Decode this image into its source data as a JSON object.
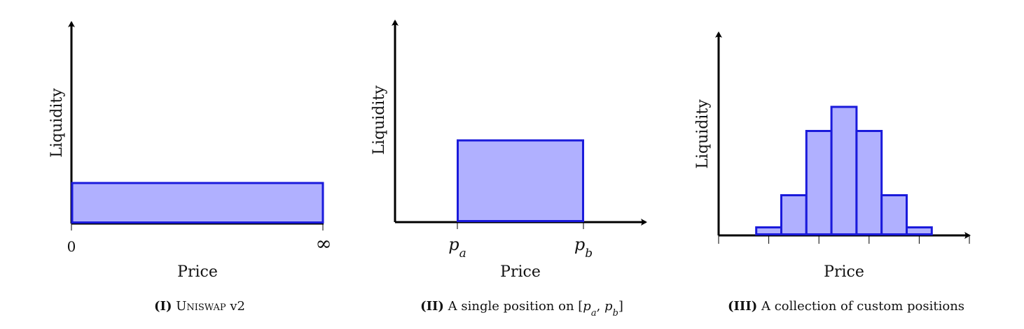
{
  "chart_data": [
    {
      "type": "bar",
      "caption_number": "(I)",
      "caption_text": "Uniswap v2",
      "xlabel": "Price",
      "ylabel": "Liquidity",
      "x_ticks": [
        "0",
        "∞"
      ],
      "bars": [
        {
          "x0": 0,
          "x1": 1,
          "height": 0.2
        }
      ],
      "fill_color": "#b0b0ff",
      "stroke_color": "#1a1adb"
    },
    {
      "type": "bar",
      "caption_number": "(II)",
      "caption_text": "A single position on [p_a, p_b]",
      "xlabel": "Price",
      "ylabel": "Liquidity",
      "x_ticks": [
        "p_a",
        "p_b"
      ],
      "bars": [
        {
          "x0": 0.25,
          "x1": 0.75,
          "height": 0.45
        }
      ],
      "fill_color": "#b0b0ff",
      "stroke_color": "#1a1adb"
    },
    {
      "type": "bar",
      "caption_number": "(III)",
      "caption_text": "A collection of custom positions",
      "xlabel": "Price",
      "ylabel": "Liquidity",
      "x_ticks": [],
      "bars": [
        {
          "x0": 1.5,
          "x1": 2.5,
          "height": 0.5
        },
        {
          "x0": 2.5,
          "x1": 3.5,
          "height": 2.5
        },
        {
          "x0": 3.5,
          "x1": 4.5,
          "height": 6.5
        },
        {
          "x0": 4.5,
          "x1": 5.5,
          "height": 8.0
        },
        {
          "x0": 5.5,
          "x1": 6.5,
          "height": 6.5
        },
        {
          "x0": 6.5,
          "x1": 7.5,
          "height": 2.5
        },
        {
          "x0": 7.5,
          "x1": 8.5,
          "height": 0.5
        }
      ],
      "x_grid_ticks": [
        0,
        2,
        4,
        6,
        8,
        10
      ],
      "fill_color": "#b0b0ff",
      "stroke_color": "#1a1adb"
    }
  ]
}
